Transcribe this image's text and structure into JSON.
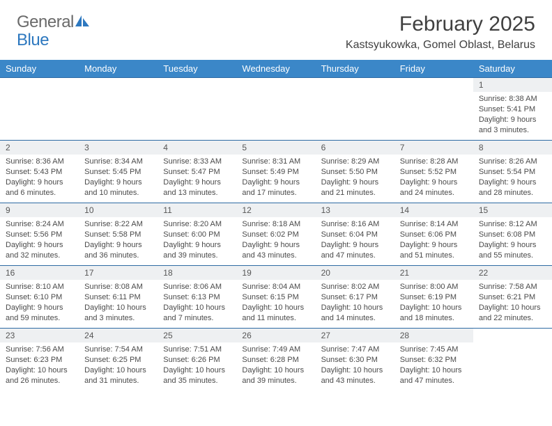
{
  "brand": {
    "text1": "General",
    "text2": "Blue"
  },
  "title": "February 2025",
  "location": "Kastsyukowka, Gomel Oblast, Belarus",
  "colors": {
    "header_bg": "#3b87c8",
    "header_text": "#ffffff",
    "row_divider": "#2d6aa3",
    "daynum_bg": "#eef0f2",
    "body_text": "#4a4a4a",
    "title_text": "#404040",
    "logo_gray": "#6a6a6a",
    "logo_blue": "#2d78bf",
    "background": "#ffffff"
  },
  "typography": {
    "title_fontsize": 30,
    "location_fontsize": 16,
    "dayhdr_fontsize": 13,
    "daynum_fontsize": 12,
    "cell_fontsize": 11,
    "logo_fontsize": 24
  },
  "day_headers": [
    "Sunday",
    "Monday",
    "Tuesday",
    "Wednesday",
    "Thursday",
    "Friday",
    "Saturday"
  ],
  "weeks": [
    [
      {
        "day": "",
        "sunrise": "",
        "sunset": "",
        "daylight": ""
      },
      {
        "day": "",
        "sunrise": "",
        "sunset": "",
        "daylight": ""
      },
      {
        "day": "",
        "sunrise": "",
        "sunset": "",
        "daylight": ""
      },
      {
        "day": "",
        "sunrise": "",
        "sunset": "",
        "daylight": ""
      },
      {
        "day": "",
        "sunrise": "",
        "sunset": "",
        "daylight": ""
      },
      {
        "day": "",
        "sunrise": "",
        "sunset": "",
        "daylight": ""
      },
      {
        "day": "1",
        "sunrise": "Sunrise: 8:38 AM",
        "sunset": "Sunset: 5:41 PM",
        "daylight": "Daylight: 9 hours and 3 minutes."
      }
    ],
    [
      {
        "day": "2",
        "sunrise": "Sunrise: 8:36 AM",
        "sunset": "Sunset: 5:43 PM",
        "daylight": "Daylight: 9 hours and 6 minutes."
      },
      {
        "day": "3",
        "sunrise": "Sunrise: 8:34 AM",
        "sunset": "Sunset: 5:45 PM",
        "daylight": "Daylight: 9 hours and 10 minutes."
      },
      {
        "day": "4",
        "sunrise": "Sunrise: 8:33 AM",
        "sunset": "Sunset: 5:47 PM",
        "daylight": "Daylight: 9 hours and 13 minutes."
      },
      {
        "day": "5",
        "sunrise": "Sunrise: 8:31 AM",
        "sunset": "Sunset: 5:49 PM",
        "daylight": "Daylight: 9 hours and 17 minutes."
      },
      {
        "day": "6",
        "sunrise": "Sunrise: 8:29 AM",
        "sunset": "Sunset: 5:50 PM",
        "daylight": "Daylight: 9 hours and 21 minutes."
      },
      {
        "day": "7",
        "sunrise": "Sunrise: 8:28 AM",
        "sunset": "Sunset: 5:52 PM",
        "daylight": "Daylight: 9 hours and 24 minutes."
      },
      {
        "day": "8",
        "sunrise": "Sunrise: 8:26 AM",
        "sunset": "Sunset: 5:54 PM",
        "daylight": "Daylight: 9 hours and 28 minutes."
      }
    ],
    [
      {
        "day": "9",
        "sunrise": "Sunrise: 8:24 AM",
        "sunset": "Sunset: 5:56 PM",
        "daylight": "Daylight: 9 hours and 32 minutes."
      },
      {
        "day": "10",
        "sunrise": "Sunrise: 8:22 AM",
        "sunset": "Sunset: 5:58 PM",
        "daylight": "Daylight: 9 hours and 36 minutes."
      },
      {
        "day": "11",
        "sunrise": "Sunrise: 8:20 AM",
        "sunset": "Sunset: 6:00 PM",
        "daylight": "Daylight: 9 hours and 39 minutes."
      },
      {
        "day": "12",
        "sunrise": "Sunrise: 8:18 AM",
        "sunset": "Sunset: 6:02 PM",
        "daylight": "Daylight: 9 hours and 43 minutes."
      },
      {
        "day": "13",
        "sunrise": "Sunrise: 8:16 AM",
        "sunset": "Sunset: 6:04 PM",
        "daylight": "Daylight: 9 hours and 47 minutes."
      },
      {
        "day": "14",
        "sunrise": "Sunrise: 8:14 AM",
        "sunset": "Sunset: 6:06 PM",
        "daylight": "Daylight: 9 hours and 51 minutes."
      },
      {
        "day": "15",
        "sunrise": "Sunrise: 8:12 AM",
        "sunset": "Sunset: 6:08 PM",
        "daylight": "Daylight: 9 hours and 55 minutes."
      }
    ],
    [
      {
        "day": "16",
        "sunrise": "Sunrise: 8:10 AM",
        "sunset": "Sunset: 6:10 PM",
        "daylight": "Daylight: 9 hours and 59 minutes."
      },
      {
        "day": "17",
        "sunrise": "Sunrise: 8:08 AM",
        "sunset": "Sunset: 6:11 PM",
        "daylight": "Daylight: 10 hours and 3 minutes."
      },
      {
        "day": "18",
        "sunrise": "Sunrise: 8:06 AM",
        "sunset": "Sunset: 6:13 PM",
        "daylight": "Daylight: 10 hours and 7 minutes."
      },
      {
        "day": "19",
        "sunrise": "Sunrise: 8:04 AM",
        "sunset": "Sunset: 6:15 PM",
        "daylight": "Daylight: 10 hours and 11 minutes."
      },
      {
        "day": "20",
        "sunrise": "Sunrise: 8:02 AM",
        "sunset": "Sunset: 6:17 PM",
        "daylight": "Daylight: 10 hours and 14 minutes."
      },
      {
        "day": "21",
        "sunrise": "Sunrise: 8:00 AM",
        "sunset": "Sunset: 6:19 PM",
        "daylight": "Daylight: 10 hours and 18 minutes."
      },
      {
        "day": "22",
        "sunrise": "Sunrise: 7:58 AM",
        "sunset": "Sunset: 6:21 PM",
        "daylight": "Daylight: 10 hours and 22 minutes."
      }
    ],
    [
      {
        "day": "23",
        "sunrise": "Sunrise: 7:56 AM",
        "sunset": "Sunset: 6:23 PM",
        "daylight": "Daylight: 10 hours and 26 minutes."
      },
      {
        "day": "24",
        "sunrise": "Sunrise: 7:54 AM",
        "sunset": "Sunset: 6:25 PM",
        "daylight": "Daylight: 10 hours and 31 minutes."
      },
      {
        "day": "25",
        "sunrise": "Sunrise: 7:51 AM",
        "sunset": "Sunset: 6:26 PM",
        "daylight": "Daylight: 10 hours and 35 minutes."
      },
      {
        "day": "26",
        "sunrise": "Sunrise: 7:49 AM",
        "sunset": "Sunset: 6:28 PM",
        "daylight": "Daylight: 10 hours and 39 minutes."
      },
      {
        "day": "27",
        "sunrise": "Sunrise: 7:47 AM",
        "sunset": "Sunset: 6:30 PM",
        "daylight": "Daylight: 10 hours and 43 minutes."
      },
      {
        "day": "28",
        "sunrise": "Sunrise: 7:45 AM",
        "sunset": "Sunset: 6:32 PM",
        "daylight": "Daylight: 10 hours and 47 minutes."
      },
      {
        "day": "",
        "sunrise": "",
        "sunset": "",
        "daylight": ""
      }
    ]
  ]
}
